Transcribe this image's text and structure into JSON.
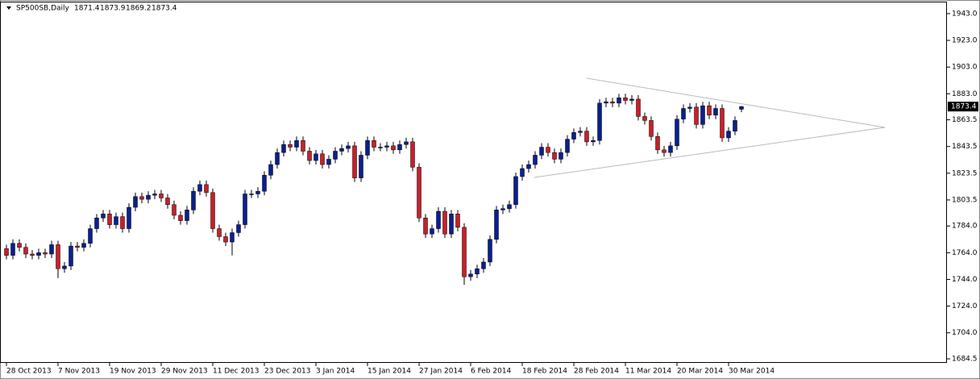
{
  "chart_data": {
    "type": "candlestick",
    "title": "SP500SB,Daily",
    "categories": [
      "28 Oct 2013",
      null,
      null,
      null,
      null,
      null,
      null,
      null,
      "7 Nov 2013",
      null,
      null,
      null,
      null,
      null,
      null,
      null,
      "19 Nov 2013",
      null,
      null,
      null,
      null,
      null,
      null,
      null,
      "29 Nov 2013",
      null,
      null,
      null,
      null,
      null,
      null,
      null,
      "11 Dec 2013",
      null,
      null,
      null,
      null,
      null,
      null,
      null,
      "23 Dec 2013",
      null,
      null,
      null,
      null,
      null,
      null,
      null,
      "3 Jan 2014",
      null,
      null,
      null,
      null,
      null,
      null,
      null,
      "15 Jan 2014",
      null,
      null,
      null,
      null,
      null,
      null,
      null,
      "27 Jan 2014",
      null,
      null,
      null,
      null,
      null,
      null,
      null,
      "6 Feb 2014",
      null,
      null,
      null,
      null,
      null,
      null,
      null,
      "18 Feb 2014",
      null,
      null,
      null,
      null,
      null,
      null,
      null,
      "28 Feb 2014",
      null,
      null,
      null,
      null,
      null,
      null,
      null,
      "11 Mar 2014",
      null,
      null,
      null,
      null,
      null,
      null,
      null,
      "20 Mar 2014",
      null,
      null,
      null,
      null,
      null,
      null,
      null,
      "30 Mar 2014",
      null,
      null
    ],
    "open": [
      1767,
      1762,
      1771,
      1768,
      1763,
      1762,
      1764,
      1763,
      1770,
      1752,
      1754,
      1769,
      1768,
      1771,
      1782,
      1790,
      1793,
      1785,
      1791,
      1782,
      1798,
      1806,
      1804,
      1807,
      1808,
      1805,
      1800,
      1792,
      1788,
      1796,
      1810,
      1815,
      1809,
      1782,
      1776,
      1772,
      1779,
      1785,
      1808,
      1808,
      1810,
      1822,
      1830,
      1839,
      1845,
      1843,
      1848,
      1840,
      1833,
      1838,
      1830,
      1834,
      1840,
      1842,
      1844,
      1820,
      1837,
      1848,
      1843,
      1843,
      1844,
      1841,
      1845,
      1847,
      1828,
      1790,
      1778,
      1782,
      1795,
      1778,
      1793,
      1783,
      1746,
      1748,
      1752,
      1757,
      1774,
      1796,
      1797,
      1800,
      1821,
      1827,
      1830,
      1837,
      1843,
      1839,
      1834,
      1839,
      1849,
      1854,
      1855,
      1847,
      1848,
      1876,
      1877,
      1876,
      1880,
      1878,
      1879,
      1866,
      1863,
      1851,
      1841,
      1839,
      1844,
      1864,
      1872,
      1873,
      1860,
      1874,
      1867,
      1872,
      1850,
      1855,
      1871.4
    ],
    "high": [
      1770,
      1774,
      1774,
      1771,
      1766,
      1767,
      1767,
      1773,
      1773,
      1757,
      1772,
      1772,
      1774,
      1785,
      1793,
      1796,
      1796,
      1794,
      1794,
      1801,
      1809,
      1809,
      1810,
      1811,
      1811,
      1808,
      1803,
      1795,
      1799,
      1813,
      1818,
      1818,
      1812,
      1785,
      1779,
      1782,
      1788,
      1811,
      1811,
      1813,
      1825,
      1833,
      1842,
      1848,
      1848,
      1851,
      1851,
      1843,
      1841,
      1841,
      1837,
      1843,
      1845,
      1847,
      1847,
      1840,
      1851,
      1851,
      1846,
      1847,
      1847,
      1848,
      1850,
      1850,
      1831,
      1793,
      1785,
      1798,
      1798,
      1796,
      1796,
      1786,
      1751,
      1755,
      1760,
      1777,
      1799,
      1800,
      1803,
      1824,
      1830,
      1833,
      1840,
      1846,
      1846,
      1842,
      1842,
      1852,
      1857,
      1858,
      1858,
      1851,
      1879,
      1880,
      1880,
      1883,
      1883,
      1882,
      1882,
      1869,
      1866,
      1854,
      1844,
      1847,
      1867,
      1875,
      1876,
      1876,
      1877,
      1877,
      1875,
      1875,
      1858,
      1866,
      1873.9
    ],
    "low": [
      1759,
      1759,
      1765,
      1760,
      1759,
      1759,
      1760,
      1760,
      1745,
      1749,
      1751,
      1765,
      1765,
      1768,
      1779,
      1787,
      1782,
      1782,
      1779,
      1779,
      1795,
      1801,
      1801,
      1804,
      1802,
      1797,
      1789,
      1785,
      1785,
      1793,
      1807,
      1806,
      1779,
      1773,
      1769,
      1762,
      1776,
      1782,
      1805,
      1805,
      1807,
      1819,
      1827,
      1836,
      1840,
      1840,
      1837,
      1830,
      1830,
      1827,
      1827,
      1831,
      1837,
      1839,
      1817,
      1817,
      1834,
      1840,
      1840,
      1840,
      1838,
      1838,
      1842,
      1825,
      1787,
      1775,
      1775,
      1779,
      1775,
      1775,
      1780,
      1740,
      1743,
      1745,
      1749,
      1754,
      1771,
      1793,
      1794,
      1797,
      1818,
      1824,
      1827,
      1834,
      1836,
      1831,
      1831,
      1836,
      1846,
      1851,
      1844,
      1844,
      1845,
      1873,
      1873,
      1873,
      1875,
      1875,
      1863,
      1860,
      1848,
      1838,
      1836,
      1836,
      1841,
      1861,
      1869,
      1857,
      1857,
      1864,
      1864,
      1847,
      1847,
      1852,
      1869.2
    ],
    "close": [
      1762,
      1771,
      1768,
      1763,
      1762,
      1764,
      1763,
      1770,
      1752,
      1754,
      1769,
      1768,
      1771,
      1782,
      1790,
      1793,
      1785,
      1791,
      1782,
      1798,
      1806,
      1804,
      1807,
      1808,
      1805,
      1800,
      1792,
      1788,
      1796,
      1810,
      1815,
      1809,
      1782,
      1776,
      1772,
      1779,
      1785,
      1808,
      1808,
      1810,
      1822,
      1830,
      1839,
      1845,
      1843,
      1848,
      1840,
      1833,
      1838,
      1830,
      1834,
      1840,
      1842,
      1844,
      1820,
      1837,
      1848,
      1843,
      1843,
      1844,
      1841,
      1845,
      1847,
      1828,
      1790,
      1778,
      1782,
      1795,
      1778,
      1793,
      1783,
      1746,
      1748,
      1752,
      1757,
      1774,
      1796,
      1797,
      1800,
      1821,
      1827,
      1830,
      1837,
      1843,
      1839,
      1834,
      1839,
      1849,
      1854,
      1855,
      1847,
      1848,
      1876,
      1877,
      1876,
      1880,
      1878,
      1879,
      1866,
      1863,
      1851,
      1841,
      1839,
      1844,
      1864,
      1872,
      1873,
      1860,
      1874,
      1867,
      1872,
      1850,
      1855,
      1863,
      1873.4
    ],
    "up_color": "#0a1f8f",
    "down_color": "#c8202a",
    "wick_color": "#000000",
    "ylim": [
      1681.5,
      1952
    ],
    "yticks": [
      {
        "value": 1943,
        "label": "1943.0"
      },
      {
        "value": 1923,
        "label": "1923.0"
      },
      {
        "value": 1903,
        "label": "1903.0"
      },
      {
        "value": 1883,
        "label": "1883.0"
      },
      1863.5,
      1843.5,
      1823.5,
      1803.5,
      {
        "value": 1784,
        "label": "1784.0"
      },
      {
        "value": 1764,
        "label": "1764.0"
      },
      {
        "value": 1744,
        "label": "1744.0"
      },
      {
        "value": 1724,
        "label": "1724.0"
      },
      {
        "value": 1704,
        "label": "1704.0"
      },
      {
        "value": 1684.5,
        "label": "1684.5"
      }
    ]
  }
}
